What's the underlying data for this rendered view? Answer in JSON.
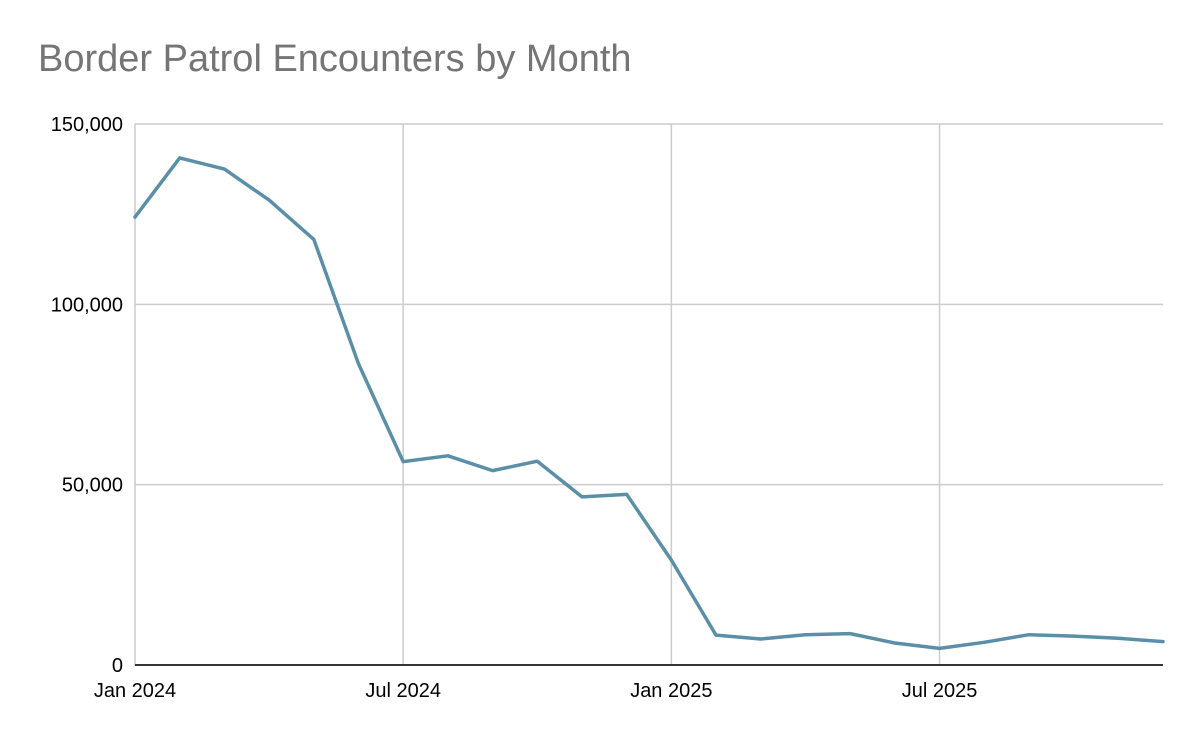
{
  "chart_data": {
    "type": "line",
    "title": "Border Patrol Encounters by Month",
    "xlabel": "",
    "ylabel": "",
    "x": [
      "2024-01",
      "2024-02",
      "2024-03",
      "2024-04",
      "2024-05",
      "2024-06",
      "2024-07",
      "2024-08",
      "2024-09",
      "2024-10",
      "2024-11",
      "2024-12",
      "2025-01",
      "2025-02",
      "2025-03",
      "2025-04",
      "2025-05",
      "2025-06",
      "2025-07",
      "2025-08",
      "2025-09",
      "2025-10",
      "2025-11",
      "2025-12"
    ],
    "series": [
      {
        "values": [
          124200,
          140600,
          137500,
          128900,
          118000,
          83500,
          56400,
          58000,
          53900,
          56500,
          46600,
          47300,
          29100,
          8300,
          7200,
          8400,
          8700,
          6100,
          4600,
          6300,
          8400,
          8000,
          7400,
          6500
        ]
      }
    ],
    "xlim": [
      "2024-01",
      "2025-12"
    ],
    "ylim": [
      0,
      150000
    ],
    "x_ticks": [
      {
        "x": "2024-01",
        "label": "Jan 2024"
      },
      {
        "x": "2024-07",
        "label": "Jul 2024"
      },
      {
        "x": "2025-01",
        "label": "Jan 2025"
      },
      {
        "x": "2025-07",
        "label": "Jul 2025"
      }
    ],
    "y_ticks": [
      {
        "value": 0,
        "label": "0"
      },
      {
        "value": 50000,
        "label": "50,000"
      },
      {
        "value": 100000,
        "label": "100,000"
      },
      {
        "value": 150000,
        "label": "150,000"
      }
    ],
    "grid": true,
    "legend": "none",
    "colors": {
      "line": "#5b8fa8",
      "grid": "#cccccc",
      "axis": "#333333",
      "title": "#757575"
    }
  }
}
